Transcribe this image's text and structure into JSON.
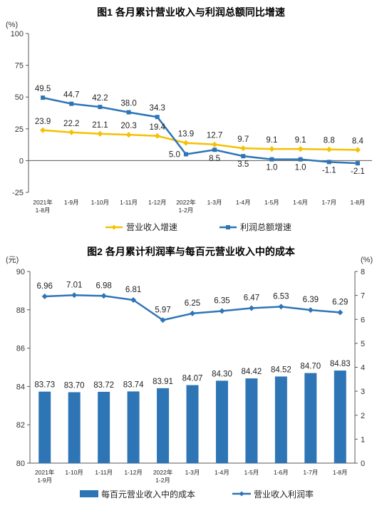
{
  "colors": {
    "blue": "#2e75b6",
    "gold": "#f5c100",
    "axis": "#595959",
    "text": "#222222"
  },
  "chart_data": [
    {
      "type": "line",
      "title": "图1  各月累计营业收入与利润总额同比增速",
      "unit": "(%)",
      "ylim": [
        -25,
        100
      ],
      "yticks": [
        -25,
        0,
        25,
        50,
        75,
        100
      ],
      "categories": [
        [
          "2021年",
          "1-8月"
        ],
        [
          "1-9月"
        ],
        [
          "1-10月"
        ],
        [
          "1-11月"
        ],
        [
          "1-12月"
        ],
        [
          "2022年",
          "1-2月"
        ],
        [
          "1-3月"
        ],
        [
          "1-4月"
        ],
        [
          "1-5月"
        ],
        [
          "1-6月"
        ],
        [
          "1-7月"
        ],
        [
          "1-8月"
        ]
      ],
      "series": [
        {
          "name": "营业收入增速",
          "color": "#f5c100",
          "values": [
            23.9,
            22.2,
            21.1,
            20.3,
            19.4,
            13.9,
            12.7,
            9.7,
            9.1,
            9.1,
            8.8,
            8.4
          ]
        },
        {
          "name": "利润总额增速",
          "color": "#2e75b6",
          "values": [
            49.5,
            44.7,
            42.2,
            38.0,
            34.3,
            5.0,
            8.5,
            3.5,
            1.0,
            1.0,
            -1.1,
            -2.1
          ]
        }
      ],
      "legend": "bottom",
      "grid": false
    },
    {
      "type": "bar+line",
      "title": "图2  各月累计利润率与每百元营业收入中的成本",
      "left_unit": "(元)",
      "right_unit": "(%)",
      "ylim_left": [
        80,
        90
      ],
      "yticks_left": [
        80,
        82,
        84,
        86,
        88,
        90
      ],
      "ylim_right": [
        0,
        8
      ],
      "yticks_right": [
        0,
        1,
        2,
        3,
        4,
        5,
        6,
        7,
        8
      ],
      "categories": [
        [
          "2021年",
          "1-9月"
        ],
        [
          "1-10月"
        ],
        [
          "1-11月"
        ],
        [
          "1-12月"
        ],
        [
          "2022年",
          "1-2月"
        ],
        [
          "1-3月"
        ],
        [
          "1-4月"
        ],
        [
          "1-5月"
        ],
        [
          "1-6月"
        ],
        [
          "1-7月"
        ],
        [
          "1-8月"
        ]
      ],
      "bar_labels": [
        "83.73",
        "83.70",
        "83.72",
        "83.74",
        "83.91",
        "84.07",
        "84.30",
        "84.42",
        "84.52",
        "84.70",
        "84.83"
      ],
      "line_labels": [
        "6.96",
        "7.01",
        "6.98",
        "6.81",
        "5.97",
        "6.25",
        "6.35",
        "6.47",
        "6.53",
        "6.39",
        "6.29"
      ],
      "bars": {
        "name": "每百元营业收入中的成本",
        "axis": "left",
        "color": "#2e75b6",
        "values": [
          83.73,
          83.7,
          83.72,
          83.74,
          83.91,
          84.07,
          84.3,
          84.42,
          84.52,
          84.7,
          84.83
        ]
      },
      "line": {
        "name": "营业收入利润率",
        "axis": "right",
        "color": "#2e75b6",
        "values": [
          6.96,
          7.01,
          6.98,
          6.81,
          5.97,
          6.25,
          6.35,
          6.47,
          6.53,
          6.39,
          6.29
        ]
      },
      "legend": "bottom",
      "grid": false
    }
  ]
}
